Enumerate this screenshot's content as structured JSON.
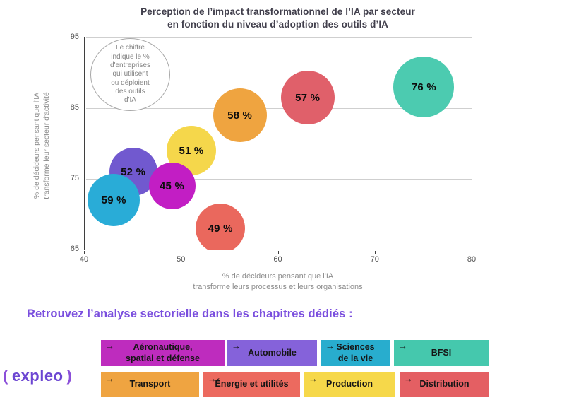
{
  "chart": {
    "title_lines": [
      "Perception de l’impact transformationnel de l’IA par secteur",
      "en fonction du niveau d’adoption des outils d’IA"
    ],
    "annotation": "Le chiffre\nindique le %\nd'entreprises\nqui utilisent\nou déploient\ndes outils\nd'IA",
    "ylabel_lines": [
      "% de décideurs pensant que l'IA",
      "transforme leur secteur d'activité"
    ],
    "xlabel_lines": [
      "% de décideurs pensant que l'IA",
      "transforme leurs processus et leurs organisations"
    ]
  },
  "chart_data": {
    "type": "scatter",
    "subtype": "bubble",
    "title": "Perception de l’impact transformationnel de l’IA par secteur en fonction du niveau d’adoption des outils d’IA",
    "xlabel": "% de décideurs pensant que l'IA transforme leurs processus et leurs organisations",
    "ylabel": "% de décideurs pensant que l'IA transforme leur secteur d'activité",
    "xlim": [
      40,
      80
    ],
    "ylim": [
      65,
      95
    ],
    "xticks": [
      40,
      50,
      60,
      70,
      80
    ],
    "yticks": [
      95,
      85,
      75,
      65
    ],
    "grid": "horizontal",
    "bubble_note": "Le chiffre indique le % d'entreprises qui utilisent ou déploient des outils d'IA",
    "points": [
      {
        "label": "52 %",
        "adoption_pct": 52,
        "x": 45,
        "y": 76,
        "color": "#7159CF",
        "r": 34
      },
      {
        "label": "51 %",
        "adoption_pct": 51,
        "x": 51,
        "y": 79,
        "color": "#F5D74B",
        "r": 35
      },
      {
        "label": "45 %",
        "adoption_pct": 45,
        "x": 49,
        "y": 74,
        "color": "#C21EC4",
        "r": 33
      },
      {
        "label": "59 %",
        "adoption_pct": 59,
        "x": 43,
        "y": 72,
        "color": "#29ACD7",
        "r": 37
      },
      {
        "label": "58 %",
        "adoption_pct": 58,
        "x": 56,
        "y": 84,
        "color": "#EFA440",
        "r": 38
      },
      {
        "label": "49 %",
        "adoption_pct": 49,
        "x": 54,
        "y": 68,
        "color": "#EA685D",
        "r": 35
      },
      {
        "label": "57 %",
        "adoption_pct": 57,
        "x": 63,
        "y": 86.5,
        "color": "#E0606A",
        "r": 38
      },
      {
        "label": "76 %",
        "adoption_pct": 76,
        "x": 75,
        "y": 88,
        "color": "#4CCBB0",
        "r": 43
      }
    ]
  },
  "section": {
    "heading": "Retrouvez l’analyse sectorielle dans les chapitres dédiés :"
  },
  "legend": {
    "arrow_glyph": "→",
    "rows": [
      [
        {
          "label": "Aéronautique,\nspatial et défense",
          "color": "#BE2CBE"
        },
        {
          "label": "Automobile",
          "color": "#8562DA"
        },
        {
          "label": "Sciences\nde la vie",
          "color": "#28ADCE"
        },
        {
          "label": "BFSI",
          "color": "#45C8AD"
        }
      ],
      [
        {
          "label": "Transport",
          "color": "#EFA441"
        },
        {
          "label": "Énergie et utilités",
          "color": "#EC6A5F"
        },
        {
          "label": "Production",
          "color": "#F6D84A"
        },
        {
          "label": "Distribution",
          "color": "#E45F63"
        }
      ]
    ]
  },
  "logo": {
    "paren_open": "(",
    "name": "expleo",
    "paren_close": ")"
  }
}
